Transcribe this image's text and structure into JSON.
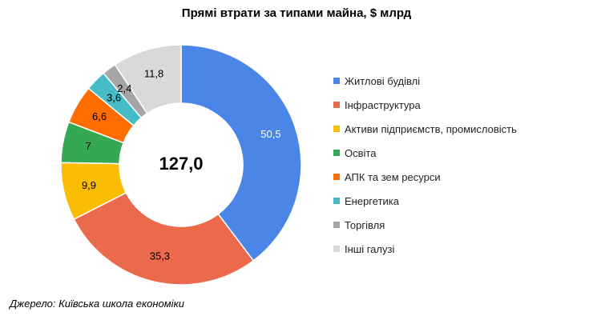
{
  "chart_data": {
    "type": "donut",
    "title": "Прямі втрати за типами майна, $ млрд",
    "center_label": "127,0",
    "total": 127.0,
    "start_angle_deg": 0,
    "direction": "clockwise",
    "legend_position": "right",
    "categories": [
      "Житлові будівлі",
      "Інфраструктура",
      "Активи підприємств, промисловість",
      "Освіта",
      "АПК та зем ресурси",
      "Енергетика",
      "Торгівля",
      "Інші галузі"
    ],
    "values": [
      50.5,
      35.3,
      9.9,
      7,
      6.6,
      3.6,
      2.4,
      11.8
    ],
    "value_labels": [
      "50,5",
      "35,3",
      "9,9",
      "7",
      "6,6",
      "3,6",
      "2,4",
      "11,8"
    ],
    "label_colors": [
      "#ffffff",
      "#000000",
      "#000000",
      "#000000",
      "#000000",
      "#000000",
      "#000000",
      "#000000"
    ],
    "colors": [
      "#4A86E8",
      "#EA6A4B",
      "#FBBC04",
      "#34A853",
      "#FF6D01",
      "#46BDC6",
      "#A5A5A5",
      "#D9D9D9"
    ]
  },
  "source": "Джерело: Київська школа економіки"
}
